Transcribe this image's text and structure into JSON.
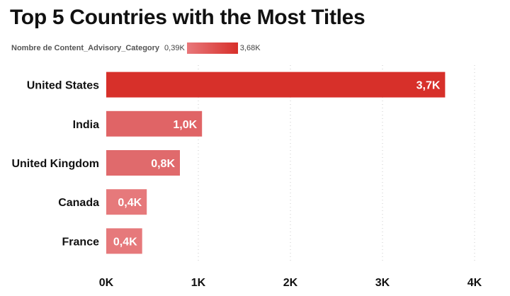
{
  "title": "Top 5 Countries with the Most Titles",
  "legend": {
    "title": "Nombre de Content_Advisory_Category",
    "min_label": "0,39K",
    "max_label": "3,68K",
    "min_color": "#e8777a",
    "max_color": "#d7302a"
  },
  "chart_data": {
    "type": "bar",
    "orientation": "horizontal",
    "title": "Top 5 Countries with the Most Titles",
    "categories": [
      "United States",
      "India",
      "United Kingdom",
      "Canada",
      "France"
    ],
    "values": [
      3680,
      1040,
      800,
      440,
      390
    ],
    "data_labels": [
      "3,7K",
      "1,0K",
      "0,8K",
      "0,4K",
      "0,4K"
    ],
    "bar_colors": [
      "#d7302a",
      "#e06466",
      "#e06a6c",
      "#e6797b",
      "#e6797b"
    ],
    "x_ticks": [
      0,
      1000,
      2000,
      3000,
      4000
    ],
    "x_tick_labels": [
      "0K",
      "1K",
      "2K",
      "3K",
      "4K"
    ],
    "xlim": [
      0,
      4000
    ],
    "grid": "vertical dotted",
    "legend": "top-left color gradient",
    "xlabel": "",
    "ylabel": ""
  }
}
